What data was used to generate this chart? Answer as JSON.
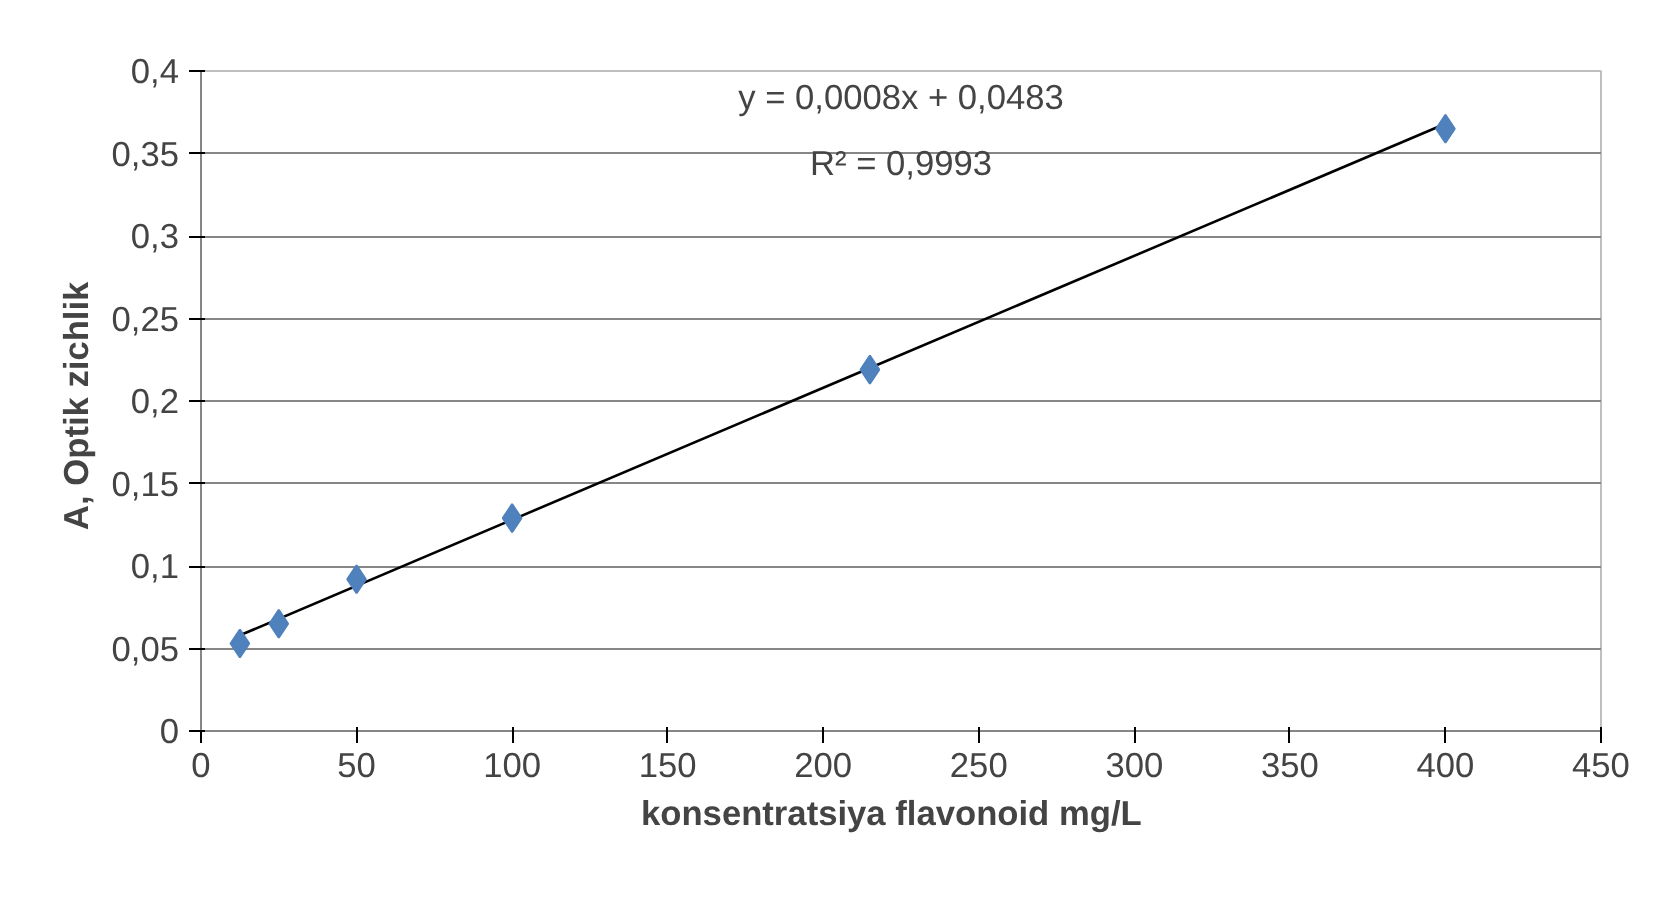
{
  "chart_data": {
    "type": "scatter",
    "xlabel": "konsentratsiya flavonoid   mg/L",
    "ylabel": "A,  Optik zichlik",
    "x": [
      12.5,
      25,
      50,
      100,
      215,
      400
    ],
    "series": [
      {
        "color": "#4f81bd",
        "marker": "diamond",
        "values": [
          0.053,
          0.065,
          0.092,
          0.129,
          0.219,
          0.365
        ]
      },
      {
        "type": "line",
        "color": "#000000",
        "x": [
          12.5,
          400
        ],
        "values": [
          0.058,
          0.368
        ]
      }
    ],
    "annotations": [
      "y = 0,0008x + 0,0483",
      "R² = 0,9993"
    ],
    "xlim": [
      0,
      450
    ],
    "xticks": [
      0,
      50,
      100,
      150,
      200,
      250,
      300,
      350,
      400,
      450
    ],
    "ylim": [
      0,
      0.4
    ],
    "yticks": [
      0,
      {
        "value": 0.05,
        "label": "0,05"
      },
      {
        "value": 0.1,
        "label": "0,1"
      },
      {
        "value": 0.15,
        "label": "0,15"
      },
      {
        "value": 0.2,
        "label": "0,2"
      },
      {
        "value": 0.25,
        "label": "0,25"
      },
      {
        "value": 0.3,
        "label": "0,3"
      },
      {
        "value": 0.35,
        "label": "0,35"
      },
      {
        "value": 0.4,
        "label": "0,4"
      }
    ],
    "grid": "y"
  }
}
